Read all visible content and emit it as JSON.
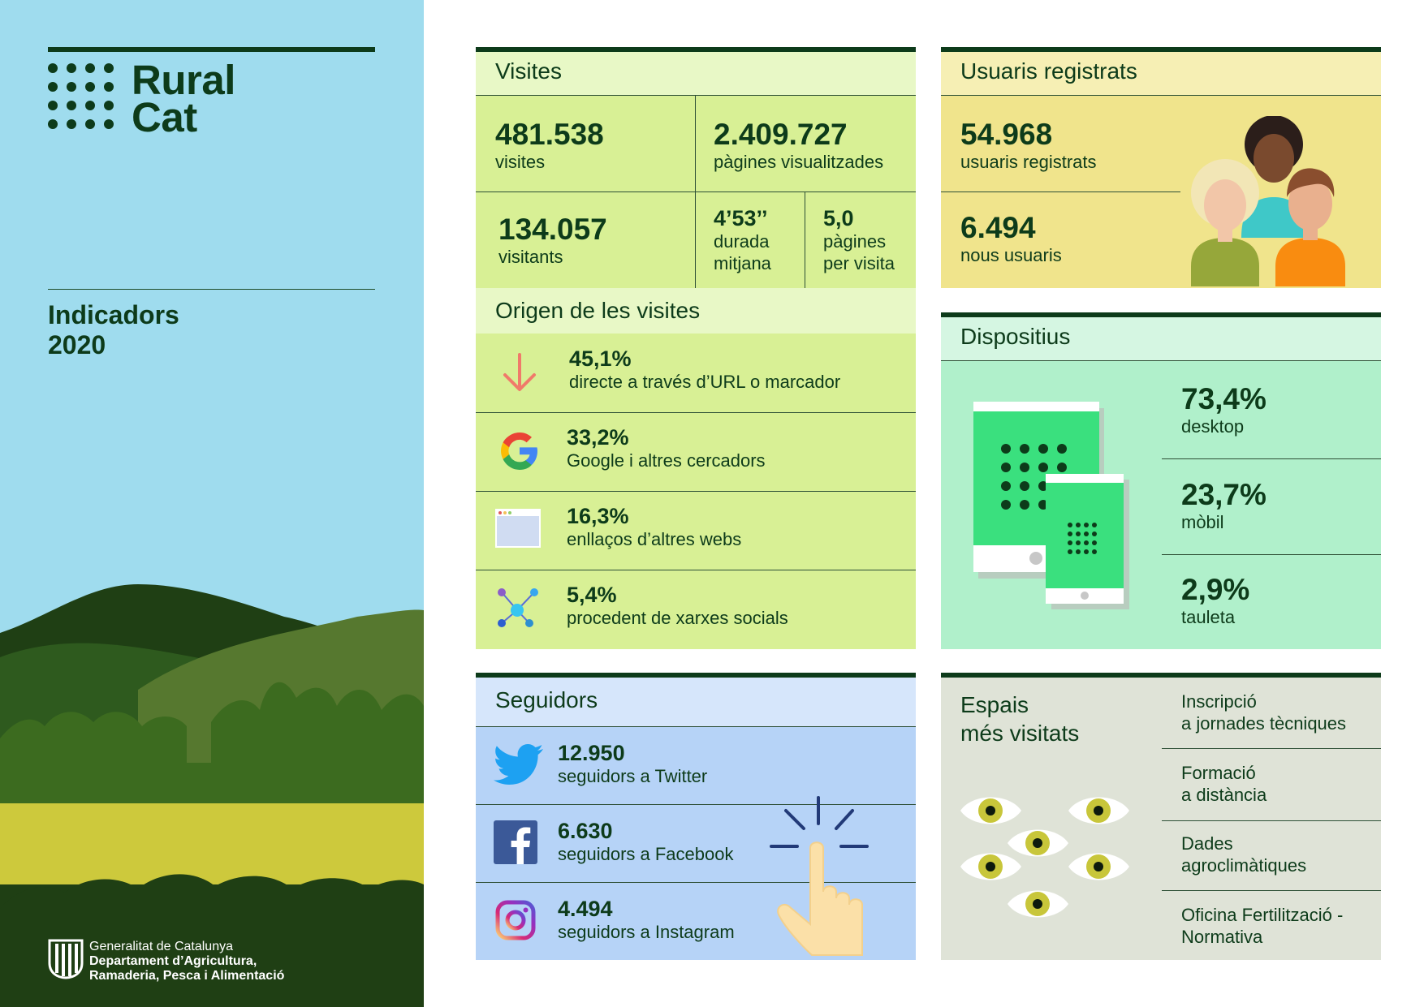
{
  "brand": {
    "name_line1": "Rural",
    "name_line2": "Cat",
    "report_title": "Indicadors",
    "report_year": "2020",
    "footer_line1": "Generalitat de Catalunya",
    "footer_line2": "Departament d’Agricultura,",
    "footer_line3": "Ramaderia, Pesca i Alimentació"
  },
  "colors": {
    "dark_green": "#0d3b1a",
    "sky": "#9fdcee",
    "visites_bg": "#d8f095",
    "usuaris_bg": "#f0e48c",
    "dispositius_bg": "#b0f0cb",
    "seguidors_bg": "#b6d3f7",
    "espais_bg": "#dfe3d7"
  },
  "visites": {
    "title": "Visites",
    "visits_value": "481.538",
    "visits_label": "visites",
    "pages_value": "2.409.727",
    "pages_label": "pàgines visualitzades",
    "visitors_value": "134.057",
    "visitors_label": "visitants",
    "duration_value": "4’53’’",
    "duration_label_1": "durada",
    "duration_label_2": "mitjana",
    "ppv_value": "5,0",
    "ppv_label_1": "pàgines",
    "ppv_label_2": "per visita"
  },
  "origen": {
    "title": "Origen de les visites",
    "items": [
      {
        "value": "45,1%",
        "label": "directe a través d’URL o marcador",
        "icon": "arrow-down-icon"
      },
      {
        "value": "33,2%",
        "label": "Google i altres cercadors",
        "icon": "google-icon"
      },
      {
        "value": "16,3%",
        "label": "enllaços d’altres webs",
        "icon": "browser-window-icon"
      },
      {
        "value": "5,4%",
        "label": "procedent de xarxes socials",
        "icon": "network-icon"
      }
    ]
  },
  "usuaris": {
    "title": "Usuaris registrats",
    "registered_value": "54.968",
    "registered_label": "usuaris registrats",
    "new_value": "6.494",
    "new_label": "nous usuaris"
  },
  "dispositius": {
    "title": "Dispositius",
    "items": [
      {
        "value": "73,4%",
        "label": "desktop"
      },
      {
        "value": "23,7%",
        "label": "mòbil"
      },
      {
        "value": "2,9%",
        "label": "tauleta"
      }
    ]
  },
  "seguidors": {
    "title": "Seguidors",
    "items": [
      {
        "value": "12.950",
        "label": "seguidors a Twitter",
        "icon": "twitter-icon"
      },
      {
        "value": "6.630",
        "label": "seguidors a Facebook",
        "icon": "facebook-icon"
      },
      {
        "value": "4.494",
        "label": "seguidors a Instagram",
        "icon": "instagram-icon"
      }
    ]
  },
  "espais": {
    "title_line1": "Espais",
    "title_line2": "més visitats",
    "items": [
      {
        "line1": "Inscripció",
        "line2": "a jornades tècniques"
      },
      {
        "line1": "Formació",
        "line2": "a distància"
      },
      {
        "line1": "Dades",
        "line2": "agroclimàtiques"
      },
      {
        "line1": "Oficina Fertilització -",
        "line2": "Normativa"
      }
    ]
  }
}
